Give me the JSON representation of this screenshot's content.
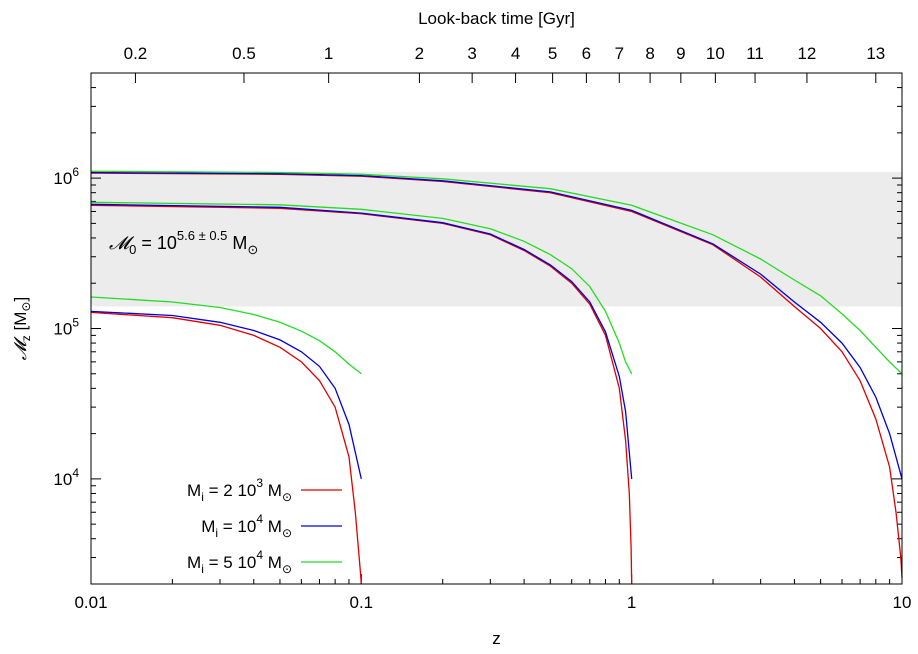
{
  "chart_data": {
    "type": "line",
    "xlabel": "z",
    "x2label": "Look-back time [Gyr]",
    "ylabel": "𝓜",
    "ylabel_sub": "z",
    "ylabel_unit_open": " [M",
    "ylabel_unit_sun": "⊙",
    "ylabel_unit_close": "]",
    "xscale": "log",
    "yscale": "log",
    "xlim": [
      0.01,
      10
    ],
    "ylim": [
      2000,
      5000000
    ],
    "x_ticks": [
      {
        "value": 0.01,
        "label": "0.01"
      },
      {
        "value": 0.1,
        "label": "0.1"
      },
      {
        "value": 1,
        "label": "1"
      },
      {
        "value": 10,
        "label": "10"
      }
    ],
    "y_ticks": [
      {
        "value": 10000,
        "base": "10",
        "exp": "4"
      },
      {
        "value": 100000,
        "base": "10",
        "exp": "5"
      },
      {
        "value": 1000000,
        "base": "10",
        "exp": "6"
      }
    ],
    "top_ticks": [
      {
        "z": 0.0146,
        "label": "0.2"
      },
      {
        "z": 0.0368,
        "label": "0.5"
      },
      {
        "z": 0.0757,
        "label": "1"
      },
      {
        "z": 0.164,
        "label": "2"
      },
      {
        "z": 0.257,
        "label": "3"
      },
      {
        "z": 0.372,
        "label": "4"
      },
      {
        "z": 0.51,
        "label": "5"
      },
      {
        "z": 0.68,
        "label": "6"
      },
      {
        "z": 0.9,
        "label": "7"
      },
      {
        "z": 1.17,
        "label": "8"
      },
      {
        "z": 1.52,
        "label": "9"
      },
      {
        "z": 2.04,
        "label": "10"
      },
      {
        "z": 2.86,
        "label": "11"
      },
      {
        "z": 4.45,
        "label": "12"
      },
      {
        "z": 8.0,
        "label": "13"
      }
    ],
    "band": {
      "ymin": 140000,
      "ymax": 1100000,
      "color": "#ececec"
    },
    "annotation": {
      "symbol": "𝓜",
      "sub": "0",
      "eq": " = 10",
      "exp": "5.6 ± 0.5",
      "unit": " M",
      "sun": "⊙",
      "x": 0.0107,
      "y": 370000
    },
    "legend": {
      "position": "bottom-left"
    },
    "series": [
      {
        "name_prefix": "M",
        "name_sub": "i",
        "name_mid": " = 2 10",
        "name_exp": "3",
        "name_unit": " M",
        "name_sun": "⊙",
        "color": "#e00000",
        "segments": [
          [
            [
              0.01,
              128000
            ],
            [
              0.02,
              118000
            ],
            [
              0.03,
              105000
            ],
            [
              0.04,
              90000
            ],
            [
              0.05,
              75000
            ],
            [
              0.06,
              60000
            ],
            [
              0.07,
              45000
            ],
            [
              0.08,
              30000
            ],
            [
              0.09,
              14000
            ],
            [
              0.095,
              6000
            ],
            [
              0.099,
              2500
            ],
            [
              0.1,
              2000
            ]
          ],
          [
            [
              0.01,
              660000
            ],
            [
              0.05,
              630000
            ],
            [
              0.1,
              580000
            ],
            [
              0.2,
              500000
            ],
            [
              0.3,
              420000
            ],
            [
              0.4,
              330000
            ],
            [
              0.5,
              260000
            ],
            [
              0.6,
              200000
            ],
            [
              0.7,
              145000
            ],
            [
              0.8,
              90000
            ],
            [
              0.9,
              40000
            ],
            [
              0.95,
              18000
            ],
            [
              0.98,
              8000
            ],
            [
              0.995,
              3500
            ],
            [
              1.0,
              2000
            ]
          ],
          [
            [
              0.01,
              1080000
            ],
            [
              0.05,
              1060000
            ],
            [
              0.1,
              1030000
            ],
            [
              0.2,
              950000
            ],
            [
              0.5,
              800000
            ],
            [
              1,
              600000
            ],
            [
              2,
              360000
            ],
            [
              3,
              220000
            ],
            [
              4,
              140000
            ],
            [
              5,
              100000
            ],
            [
              6,
              70000
            ],
            [
              7,
              45000
            ],
            [
              8,
              25000
            ],
            [
              9,
              12000
            ],
            [
              9.5,
              6000
            ],
            [
              9.9,
              3000
            ],
            [
              10,
              2200
            ]
          ]
        ]
      },
      {
        "name_prefix": "M",
        "name_sub": "i",
        "name_mid": " = 10",
        "name_exp": "4",
        "name_unit": " M",
        "name_sun": "⊙",
        "color": "#0000dd",
        "segments": [
          [
            [
              0.01,
              130000
            ],
            [
              0.02,
              122000
            ],
            [
              0.03,
              110000
            ],
            [
              0.04,
              97000
            ],
            [
              0.05,
              84000
            ],
            [
              0.06,
              70000
            ],
            [
              0.07,
              56000
            ],
            [
              0.08,
              40000
            ],
            [
              0.09,
              23000
            ],
            [
              0.095,
              15000
            ],
            [
              0.1,
              10000
            ]
          ],
          [
            [
              0.01,
              670000
            ],
            [
              0.05,
              640000
            ],
            [
              0.1,
              585000
            ],
            [
              0.2,
              505000
            ],
            [
              0.3,
              425000
            ],
            [
              0.4,
              335000
            ],
            [
              0.5,
              265000
            ],
            [
              0.6,
              205000
            ],
            [
              0.7,
              150000
            ],
            [
              0.8,
              95000
            ],
            [
              0.9,
              48000
            ],
            [
              0.95,
              28000
            ],
            [
              1.0,
              10000
            ]
          ],
          [
            [
              0.01,
              1090000
            ],
            [
              0.05,
              1070000
            ],
            [
              0.1,
              1040000
            ],
            [
              0.2,
              960000
            ],
            [
              0.5,
              810000
            ],
            [
              1,
              610000
            ],
            [
              2,
              365000
            ],
            [
              3,
              230000
            ],
            [
              4,
              150000
            ],
            [
              5,
              110000
            ],
            [
              6,
              80000
            ],
            [
              7,
              55000
            ],
            [
              8,
              35000
            ],
            [
              9,
              20000
            ],
            [
              9.5,
              14000
            ],
            [
              10,
              10000
            ]
          ]
        ]
      },
      {
        "name_prefix": "M",
        "name_sub": "i",
        "name_mid": " = 5 10",
        "name_exp": "4",
        "name_unit": " M",
        "name_sun": "⊙",
        "color": "#22dd22",
        "segments": [
          [
            [
              0.01,
              162000
            ],
            [
              0.02,
              150000
            ],
            [
              0.03,
              138000
            ],
            [
              0.04,
              124000
            ],
            [
              0.05,
              110000
            ],
            [
              0.06,
              96000
            ],
            [
              0.07,
              83000
            ],
            [
              0.08,
              70000
            ],
            [
              0.09,
              58000
            ],
            [
              0.1,
              50000
            ]
          ],
          [
            [
              0.01,
              690000
            ],
            [
              0.05,
              665000
            ],
            [
              0.1,
              620000
            ],
            [
              0.2,
              540000
            ],
            [
              0.3,
              460000
            ],
            [
              0.4,
              380000
            ],
            [
              0.5,
              310000
            ],
            [
              0.6,
              250000
            ],
            [
              0.7,
              190000
            ],
            [
              0.8,
              130000
            ],
            [
              0.9,
              80000
            ],
            [
              0.95,
              60000
            ],
            [
              1.0,
              50000
            ]
          ],
          [
            [
              0.01,
              1110000
            ],
            [
              0.05,
              1090000
            ],
            [
              0.1,
              1060000
            ],
            [
              0.2,
              990000
            ],
            [
              0.5,
              850000
            ],
            [
              1,
              660000
            ],
            [
              2,
              420000
            ],
            [
              3,
              290000
            ],
            [
              4,
              210000
            ],
            [
              5,
              165000
            ],
            [
              6,
              125000
            ],
            [
              7,
              97000
            ],
            [
              8,
              75000
            ],
            [
              9,
              60000
            ],
            [
              10,
              50000
            ]
          ]
        ]
      }
    ]
  }
}
